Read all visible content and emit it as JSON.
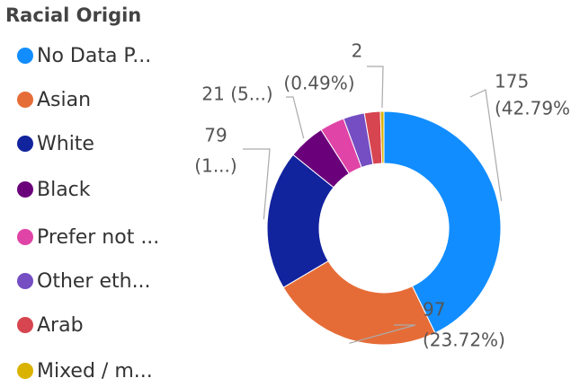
{
  "chart_data": {
    "type": "donut",
    "legend_title": "Racial Origin",
    "categories": [
      "No Data P...",
      "Asian",
      "White",
      "Black",
      "Prefer not ...",
      "Other eth...",
      "Arab",
      "Mixed / m..."
    ],
    "values": [
      175,
      97,
      79,
      21,
      14,
      12,
      9,
      2
    ],
    "value_labels": [
      [
        "175",
        "(42.79%)"
      ],
      [
        "97",
        "(23.72%)"
      ],
      [
        "79",
        "(1...)"
      ],
      [
        "21 (5...)"
      ],
      null,
      null,
      null,
      [
        "2",
        "(0.49%)"
      ]
    ],
    "colors": [
      "#118DFF",
      "#E66C37",
      "#12239E",
      "#6B007B",
      "#E044A7",
      "#744EC2",
      "#D64550",
      "#D9B300"
    ],
    "legend": "left"
  }
}
